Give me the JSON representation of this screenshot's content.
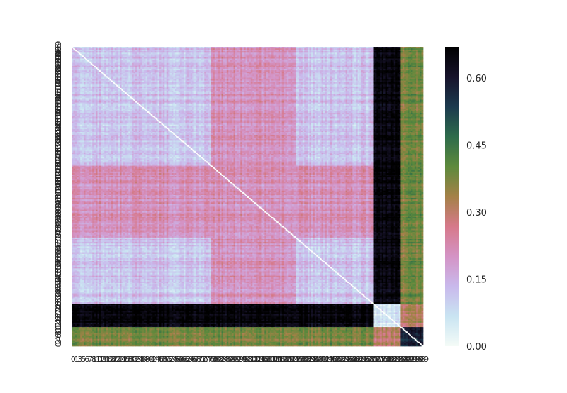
{
  "chart_data": {
    "type": "heatmap",
    "title": "",
    "xlabel": "",
    "ylabel": "",
    "matrix_size": 204,
    "blocks": {
      "main_cluster": [
        0,
        175
      ],
      "second_cluster": [
        175,
        191
      ],
      "third_cluster": [
        191,
        204
      ]
    },
    "value_levels": {
      "within_main_cluster": 0.12,
      "main_subblock_bottom": 0.21,
      "main_to_second_cluster": 0.65,
      "main_to_third_cluster": 0.38,
      "within_second_cluster": 0.05,
      "second_to_third_cluster": 0.3,
      "within_third_cluster": 0.58,
      "diagonal": 0.0
    },
    "colorbar": {
      "colormap": "cubehelix_r",
      "vmin": 0.0,
      "vmax": 0.67,
      "ticks": [
        0.0,
        0.15,
        0.3,
        0.45,
        0.6
      ],
      "tick_labels": [
        "0.00",
        "0.15",
        "0.30",
        "0.45",
        "0.60"
      ],
      "colors": [
        "#f4fbf7",
        "#c9e4f2",
        "#c9b9ec",
        "#d493c5",
        "#d6798a",
        "#a48147",
        "#5d8a3c",
        "#2d6b4b",
        "#1c3a4e",
        "#17132b",
        "#000000"
      ]
    },
    "x_tick_labels": "0 1 3 5 6 7 8 10 12 14 16 18 20 22 24 26 28 30 32 34 36 38 40 42 44 46 48 50 52 54 56 58 60 62 64 66 68 70 72 74 76 78 80 82 84 86 88 90 92 94 96 98 100 102 104 106 108 110 112 114 116 118 120 122 124 126 128 130 132 134 136 138 140 142 144 146 148 150 152 154 156 158 160 162 164 166 168 170 172 174 176 178 180 182 184 186 188 190 192 194 196 198 199",
    "y_tick_labels": "199 198 196 194 192 190 188 186 184 182 180 178 176 174 172 170 168 166 164 162 160 158 156 154 152 150 148 146 144 142 140 138 136 134 132 130 128 126 124 122 120 118 116 114 112 110 108 106 104 102 100 98 96 94 92 90 88 86 84 82 80 78 76 74 72 70 68 66 64 62 60 58 56 54 52 50 48 46 44 42 40 38 36 34 32 30 28 26 24 22 20 18 16 14 12 10 8 6 4 2 0"
  }
}
